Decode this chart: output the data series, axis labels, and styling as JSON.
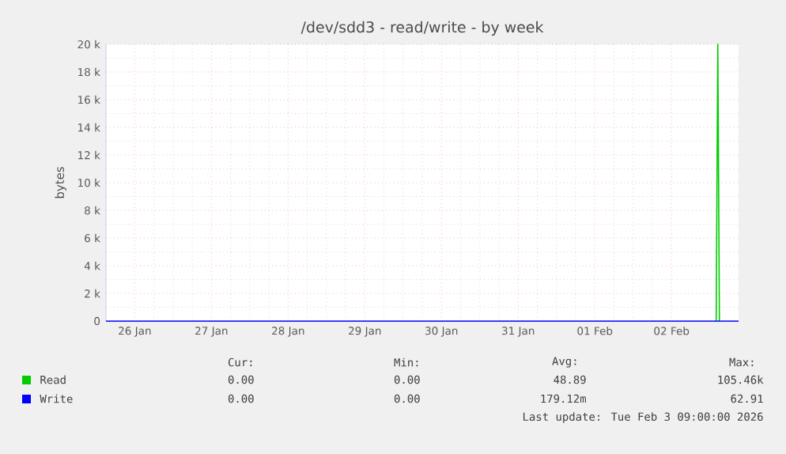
{
  "chart_data": {
    "type": "line",
    "title": "/dev/sdd3 - read/write - by week",
    "ylabel": "bytes",
    "xlim": [
      "2026-01-26T03:00",
      "2026-02-03T09:00"
    ],
    "xticks": [
      {
        "value": "2026-01-26T12:00",
        "label": "26 Jan"
      },
      {
        "value": "2026-01-27T12:00",
        "label": "27 Jan"
      },
      {
        "value": "2026-01-28T12:00",
        "label": "28 Jan"
      },
      {
        "value": "2026-01-29T12:00",
        "label": "29 Jan"
      },
      {
        "value": "2026-01-30T12:00",
        "label": "30 Jan"
      },
      {
        "value": "2026-01-31T12:00",
        "label": "31 Jan"
      },
      {
        "value": "2026-02-01T12:00",
        "label": "01 Feb"
      },
      {
        "value": "2026-02-02T12:00",
        "label": "02 Feb"
      }
    ],
    "ylim": [
      0,
      20000
    ],
    "yticks": [
      {
        "value": 0,
        "label": "0"
      },
      {
        "value": 2000,
        "label": "2 k"
      },
      {
        "value": 4000,
        "label": "4 k"
      },
      {
        "value": 6000,
        "label": "6 k"
      },
      {
        "value": 8000,
        "label": "8 k"
      },
      {
        "value": 10000,
        "label": "10 k"
      },
      {
        "value": 12000,
        "label": "12 k"
      },
      {
        "value": 14000,
        "label": "14 k"
      },
      {
        "value": 16000,
        "label": "16 k"
      },
      {
        "value": 18000,
        "label": "18 k"
      },
      {
        "value": 20000,
        "label": "20 k"
      }
    ],
    "grid": true,
    "legend": "bottom left",
    "marker": "none",
    "line_style": "solid",
    "series": [
      {
        "name": "Read",
        "color": "#00cc00",
        "x": [
          "2026-02-03T02:00",
          "2026-02-03T02:30",
          "2026-02-03T03:00"
        ],
        "values": [
          0,
          20000,
          0
        ]
      },
      {
        "name": "Write",
        "color": "#0000ff",
        "x": [
          "2026-01-26T03:00",
          "2026-02-03T09:00"
        ],
        "values": [
          0,
          0
        ]
      }
    ],
    "annotations": [
      "Cur:",
      "Min:",
      "Avg:",
      "Max:",
      "0.00",
      "0.00",
      "48.89",
      "105.46k",
      "0.00",
      "0.00",
      "179.12m",
      "62.91",
      "Last update: Tue Feb  3 09:00:00 2026"
    ]
  }
}
